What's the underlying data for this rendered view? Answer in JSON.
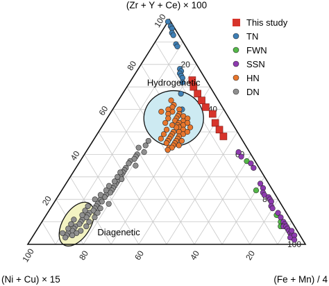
{
  "chart_data": {
    "type": "scatter",
    "subtype": "ternary",
    "axes": {
      "top": "(Zr + Y + Ce) × 100",
      "left": "(Ni + Cu) × 15",
      "right": "(Fe + Mn) / 4"
    },
    "ticks": {
      "top_axis": [
        "20",
        "40",
        "60",
        "80",
        "100"
      ],
      "bottom_axis": [
        "20",
        "40",
        "60",
        "80",
        "100"
      ],
      "right_axis": [
        "20",
        "40",
        "60",
        "80",
        "100"
      ]
    },
    "grid": true,
    "legend_position": "top-right",
    "fields": [
      {
        "label": "Hydrogenetic",
        "fill": "#cdeaf2"
      },
      {
        "label": "Diagenetic",
        "fill": "#f3f3c2"
      }
    ],
    "series": [
      {
        "name": "This study",
        "marker": "square",
        "color": "#d7342b",
        "points": [
          [
            73,
            5,
            22
          ],
          [
            70,
            6,
            24
          ],
          [
            67,
            6,
            27
          ],
          [
            64,
            6,
            30
          ],
          [
            61,
            6,
            33
          ],
          [
            58,
            5,
            37
          ],
          [
            54,
            6,
            40
          ],
          [
            51,
            6,
            43
          ],
          [
            48,
            6,
            46
          ]
        ]
      },
      {
        "name": "TN",
        "marker": "circle",
        "color": "#3e7fb5",
        "points": [
          [
            99,
            1,
            0
          ],
          [
            97,
            1,
            2
          ],
          [
            96,
            1,
            3
          ],
          [
            94,
            2,
            4
          ],
          [
            93,
            2,
            5
          ],
          [
            89,
            3,
            8
          ],
          [
            88,
            3,
            9
          ],
          [
            78,
            7,
            15
          ],
          [
            77,
            7,
            16
          ],
          [
            76,
            8,
            16
          ],
          [
            75,
            8,
            17
          ],
          [
            74,
            8,
            18
          ],
          [
            72,
            9,
            19
          ],
          [
            67,
            12,
            21
          ],
          [
            60,
            15,
            25
          ]
        ]
      },
      {
        "name": "FWN",
        "marker": "circle",
        "color": "#54b848",
        "points": [
          [
            37,
            3,
            60
          ],
          [
            24,
            6,
            70
          ],
          [
            13,
            4,
            83
          ],
          [
            10,
            4,
            86
          ],
          [
            8,
            5,
            87
          ]
        ]
      },
      {
        "name": "SSN",
        "marker": "circle",
        "color": "#8e3bb0",
        "points": [
          [
            41,
            4,
            55
          ],
          [
            39,
            4,
            57
          ],
          [
            36,
            2,
            62
          ],
          [
            34,
            2,
            64
          ],
          [
            27,
            3,
            70
          ],
          [
            25,
            3,
            72
          ],
          [
            23,
            4,
            73
          ],
          [
            22,
            4,
            74
          ],
          [
            21,
            3,
            76
          ],
          [
            20,
            3,
            77
          ],
          [
            19,
            3,
            78
          ],
          [
            17,
            4,
            79
          ],
          [
            16,
            4,
            80
          ],
          [
            14,
            3,
            83
          ],
          [
            12,
            3,
            85
          ],
          [
            10,
            3,
            87
          ],
          [
            9,
            3,
            88
          ],
          [
            8,
            4,
            88
          ],
          [
            8,
            3,
            89
          ],
          [
            7,
            3,
            90
          ],
          [
            6,
            3,
            91
          ],
          [
            5,
            3,
            92
          ],
          [
            4,
            3,
            93
          ],
          [
            3,
            4,
            93
          ],
          [
            4,
            2,
            94
          ],
          [
            6,
            2,
            92
          ],
          [
            2,
            3,
            95
          ]
        ]
      },
      {
        "name": "HN",
        "marker": "circle",
        "color": "#e8762c",
        "points": [
          [
            64,
            17,
            19
          ],
          [
            62,
            17,
            21
          ],
          [
            61,
            18,
            21
          ],
          [
            60,
            16,
            24
          ],
          [
            59,
            19,
            22
          ],
          [
            58,
            17,
            25
          ],
          [
            57,
            18,
            25
          ],
          [
            56,
            19,
            25
          ],
          [
            55,
            17,
            28
          ],
          [
            55,
            20,
            25
          ],
          [
            54,
            19,
            27
          ],
          [
            53,
            18,
            29
          ],
          [
            53,
            20,
            27
          ],
          [
            52,
            20,
            28
          ],
          [
            52,
            21,
            27
          ],
          [
            51,
            19,
            30
          ],
          [
            50,
            21,
            29
          ],
          [
            50,
            23,
            27
          ],
          [
            49,
            20,
            31
          ],
          [
            49,
            24,
            27
          ],
          [
            48,
            22,
            30
          ],
          [
            48,
            25,
            27
          ],
          [
            47,
            23,
            30
          ],
          [
            47,
            26,
            27
          ],
          [
            46,
            24,
            30
          ],
          [
            46,
            27,
            27
          ],
          [
            45,
            25,
            30
          ],
          [
            45,
            28,
            27
          ],
          [
            44,
            26,
            30
          ],
          [
            43,
            28,
            29
          ],
          [
            43,
            27,
            30
          ],
          [
            42,
            29,
            29
          ],
          [
            57,
            16,
            27
          ],
          [
            56,
            15,
            29
          ],
          [
            54,
            16,
            30
          ],
          [
            52,
            16,
            32
          ],
          [
            60,
            20,
            20
          ],
          [
            58,
            21,
            21
          ],
          [
            46,
            22,
            32
          ],
          [
            44,
            24,
            32
          ],
          [
            50,
            18,
            32
          ],
          [
            53,
            22,
            25
          ],
          [
            56,
            22,
            22
          ],
          [
            49,
            27,
            24
          ],
          [
            51,
            25,
            24
          ],
          [
            47,
            29,
            24
          ],
          [
            54,
            24,
            22
          ],
          [
            59,
            23,
            18
          ]
        ]
      },
      {
        "name": "DN",
        "marker": "circle",
        "color": "#8f8f8f",
        "points": [
          [
            46,
            34,
            20
          ],
          [
            44,
            36,
            20
          ],
          [
            43,
            39,
            18
          ],
          [
            41,
            38,
            21
          ],
          [
            40,
            41,
            19
          ],
          [
            39,
            42,
            19
          ],
          [
            38,
            43,
            19
          ],
          [
            37,
            45,
            18
          ],
          [
            36,
            46,
            18
          ],
          [
            35,
            44,
            21
          ],
          [
            34,
            48,
            18
          ],
          [
            33,
            49,
            18
          ],
          [
            32,
            50,
            18
          ],
          [
            31,
            51,
            18
          ],
          [
            30,
            52,
            18
          ],
          [
            29,
            52,
            19
          ],
          [
            28,
            54,
            18
          ],
          [
            27,
            55,
            18
          ],
          [
            26,
            56,
            18
          ],
          [
            25,
            57,
            18
          ],
          [
            24,
            58,
            18
          ],
          [
            23,
            59,
            18
          ],
          [
            22,
            61,
            17
          ],
          [
            21,
            62,
            17
          ],
          [
            20,
            64,
            16
          ],
          [
            19,
            64,
            17
          ],
          [
            18,
            66,
            16
          ],
          [
            17,
            67,
            16
          ],
          [
            16,
            68,
            16
          ],
          [
            15,
            69,
            16
          ],
          [
            14,
            71,
            15
          ],
          [
            13,
            72,
            15
          ],
          [
            12,
            73,
            15
          ],
          [
            11,
            75,
            14
          ],
          [
            10,
            76,
            14
          ],
          [
            9,
            77,
            14
          ],
          [
            8,
            79,
            13
          ],
          [
            7,
            80,
            13
          ],
          [
            6,
            81,
            13
          ],
          [
            5,
            83,
            12
          ],
          [
            4,
            84,
            12
          ],
          [
            3,
            85,
            12
          ],
          [
            18,
            62,
            20
          ],
          [
            16,
            66,
            18
          ],
          [
            14,
            68,
            18
          ],
          [
            12,
            70,
            18
          ],
          [
            10,
            73,
            17
          ],
          [
            8,
            75,
            17
          ],
          [
            6,
            78,
            16
          ],
          [
            5,
            80,
            15
          ],
          [
            4,
            82,
            14
          ],
          [
            9,
            80,
            11
          ],
          [
            7,
            82,
            11
          ],
          [
            5,
            85,
            10
          ],
          [
            11,
            78,
            11
          ],
          [
            13,
            74,
            13
          ],
          [
            15,
            72,
            13
          ],
          [
            17,
            70,
            13
          ],
          [
            20,
            66,
            14
          ],
          [
            22,
            63,
            15
          ],
          [
            24,
            60,
            16
          ],
          [
            26,
            58,
            16
          ],
          [
            28,
            55,
            17
          ],
          [
            30,
            53,
            17
          ],
          [
            32,
            51,
            17
          ]
        ]
      }
    ]
  }
}
